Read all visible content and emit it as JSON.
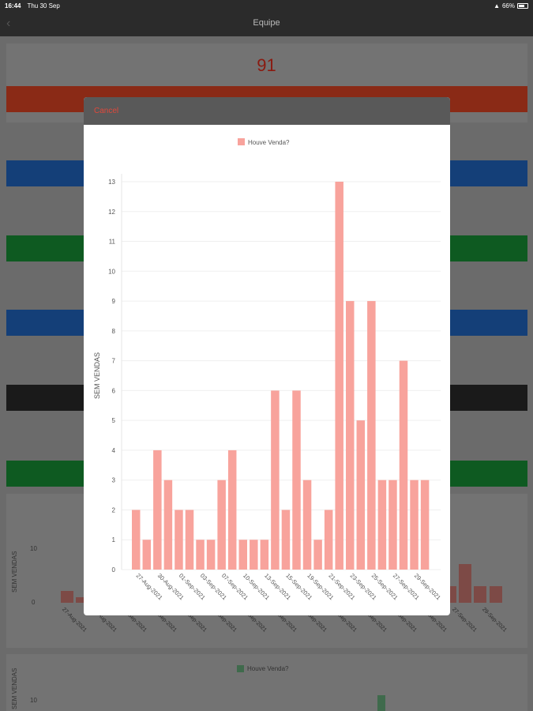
{
  "status": {
    "time": "16:44",
    "date": "Thu 30 Sep",
    "battery": "66%"
  },
  "nav": {
    "title": "Equipe"
  },
  "background": {
    "big_number": "91",
    "strips": [
      "red",
      "blue",
      "green",
      "blue",
      "black",
      "green"
    ],
    "chart_ylabel": "SEM VENDAS",
    "chart_yticks": [
      "10",
      "0"
    ],
    "chart_xticks": [
      "27-Aug-2021",
      "30-Aug-2021",
      "01-Sep-2021",
      "03-Sep-2021",
      "06-Sep-2021",
      "08-Sep-2021",
      "10-Sep-2021",
      "13-Sep-2021",
      "15-Sep-2021",
      "17-Sep-2021",
      "20-Sep-2021",
      "22-Sep-2021",
      "24-Sep-2021",
      "27-Sep-2021",
      "29-Sep-2021"
    ],
    "legend2": "Houve Venda?",
    "chart2_ylabel": "SEM VENDAS",
    "chart2_ytick": "10"
  },
  "modal": {
    "cancel_label": "Cancel"
  },
  "chart_data": {
    "type": "bar",
    "legend": "Houve Venda?",
    "ylabel": "SEM VENDAS",
    "xlabel": "",
    "ylim": [
      0,
      13
    ],
    "yticks": [
      "0",
      "1",
      "2",
      "3",
      "4",
      "5",
      "6",
      "7",
      "8",
      "9",
      "10",
      "11",
      "12",
      "13"
    ],
    "values": [
      2,
      1,
      4,
      3,
      2,
      2,
      1,
      1,
      3,
      4,
      1,
      1,
      1,
      6,
      2,
      6,
      3,
      1,
      2,
      13,
      9,
      5,
      9,
      3,
      3,
      7,
      3,
      3
    ],
    "tick_labels": [
      "27-Aug-2021",
      "30-Aug-2021",
      "01-Sep-2021",
      "03-Sep-2021",
      "07-Sep-2021",
      "10-Sep-2021",
      "13-Sep-2021",
      "15-Sep-2021",
      "19-Sep-2021",
      "21-Sep-2021",
      "23-Sep-2021",
      "25-Sep-2021",
      "27-Sep-2021",
      "29-Sep-2021"
    ],
    "color": "#f8a39c",
    "grid": true
  }
}
